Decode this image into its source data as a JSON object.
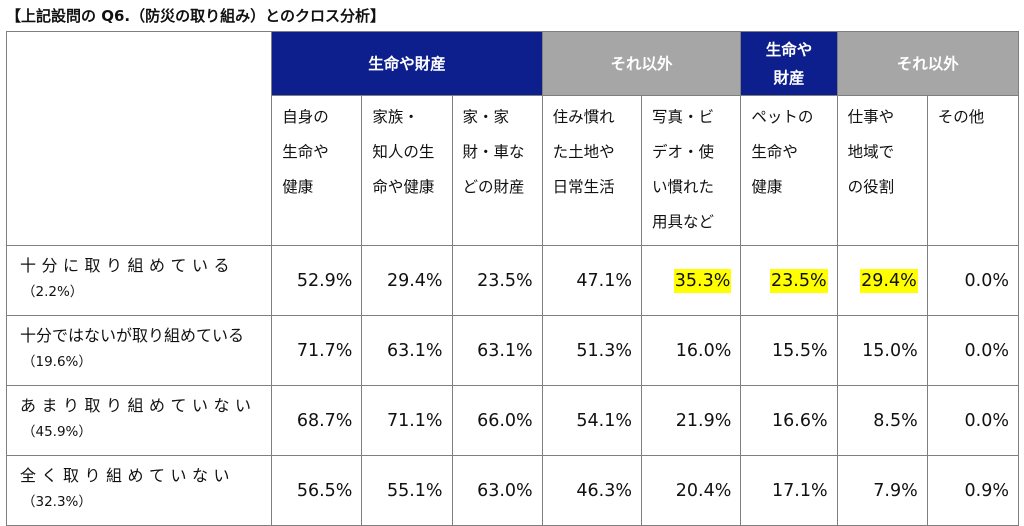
{
  "title": "【上記設問の Q6.（防災の取り組み）とのクロス分析】",
  "groups": [
    {
      "lines": [
        "生命や財産"
      ],
      "style": "navy"
    },
    {
      "lines": [
        "それ以外"
      ],
      "style": "gray"
    },
    {
      "lines": [
        "生命や",
        "財産"
      ],
      "style": "navy"
    },
    {
      "lines": [
        "それ以外"
      ],
      "style": "gray"
    }
  ],
  "columns": [
    {
      "lines": [
        "自身の",
        "生命や",
        "健康"
      ]
    },
    {
      "lines": [
        "家族・",
        "知人の生",
        "命や健康"
      ]
    },
    {
      "lines": [
        "家・家",
        "財・車な",
        "どの財産"
      ]
    },
    {
      "lines": [
        "住み慣れ",
        "た土地や",
        "日常生活"
      ]
    },
    {
      "lines": [
        "写真・ビ",
        "デオ・使",
        "い慣れた",
        "用具など"
      ]
    },
    {
      "lines": [
        "ペットの",
        "生命や",
        "健康"
      ]
    },
    {
      "lines": [
        "仕事や",
        "地域で",
        "の役割"
      ]
    },
    {
      "lines": [
        "その他"
      ]
    }
  ],
  "rows": [
    {
      "label": "十分に取り組めている",
      "share": "（2.2%）",
      "values": [
        "52.9%",
        "29.4%",
        "23.5%",
        "47.1%",
        "35.3%",
        "23.5%",
        "29.4%",
        "0.0%"
      ],
      "highlight": [
        false,
        false,
        false,
        false,
        true,
        true,
        true,
        false
      ]
    },
    {
      "label": "十分ではないが取り組めている",
      "share": "（19.6%）",
      "values": [
        "71.7%",
        "63.1%",
        "63.1%",
        "51.3%",
        "16.0%",
        "15.5%",
        "15.0%",
        "0.0%"
      ],
      "highlight": [
        false,
        false,
        false,
        false,
        false,
        false,
        false,
        false
      ]
    },
    {
      "label": "あまり取り組めていない",
      "share": "（45.9%）",
      "values": [
        "68.7%",
        "71.1%",
        "66.0%",
        "54.1%",
        "21.9%",
        "16.6%",
        "8.5%",
        "0.0%"
      ],
      "highlight": [
        false,
        false,
        false,
        false,
        false,
        false,
        false,
        false
      ]
    },
    {
      "label": "全く取り組めていない",
      "share": "（32.3%）",
      "values": [
        "56.5%",
        "55.1%",
        "63.0%",
        "46.3%",
        "20.4%",
        "17.1%",
        "7.9%",
        "0.9%"
      ],
      "highlight": [
        false,
        false,
        false,
        false,
        false,
        false,
        false,
        false
      ]
    }
  ],
  "colors": {
    "navy_header": "#0d1f8c",
    "gray_header": "#a6a6a6",
    "highlight": "#ffff00"
  }
}
